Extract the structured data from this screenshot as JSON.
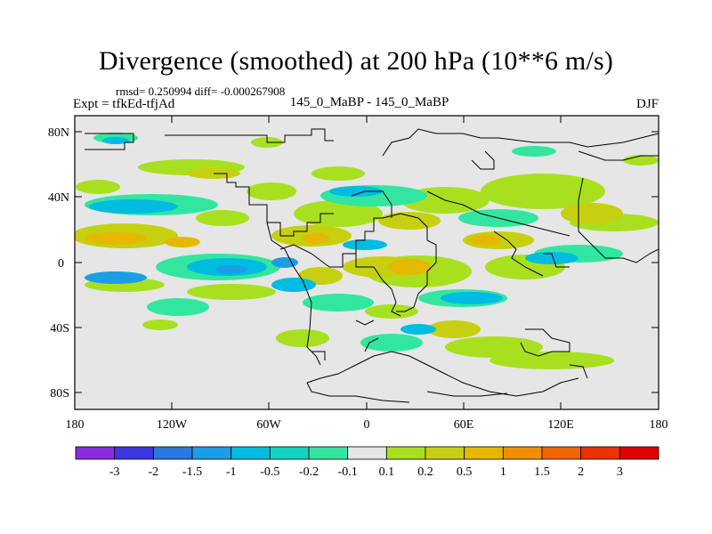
{
  "title": "Divergence (smoothed) at 200 hPa (10**6 m/s)",
  "stats_line": "rmsd= 0.250994 diff= -0.000267908",
  "left_label": "Expt = tfkEd-tfjAd",
  "center_label": "145_0_MaBP - 145_0_MaBP",
  "season": "DJF",
  "map": {
    "projection": "cylindrical-equidistant",
    "lon_range": [
      -180,
      180
    ],
    "lat_range": [
      -90,
      90
    ],
    "y_ticks": [
      "80N",
      "40N",
      "0",
      "40S",
      "80S"
    ],
    "x_ticks": [
      "180",
      "120W",
      "60W",
      "0",
      "60E",
      "120E",
      "180"
    ],
    "background_color": "#e6e6e6",
    "coastline_style": "coarse-grid outline"
  },
  "colorbar": {
    "labels": [
      "-3",
      "-2",
      "-1.5",
      "-1",
      "-0.5",
      "-0.2",
      "-0.1",
      "0.1",
      "0.2",
      "0.5",
      "1",
      "1.5",
      "2",
      "3"
    ],
    "colors": [
      "#8a2be2",
      "#3c37e0",
      "#2a78e0",
      "#1a9ee6",
      "#00bce0",
      "#10d6c0",
      "#32e6a0",
      "#e6e6e6",
      "#a8e020",
      "#c6d010",
      "#e6b800",
      "#ee9000",
      "#f46400",
      "#f03000",
      "#e00000"
    ]
  }
}
